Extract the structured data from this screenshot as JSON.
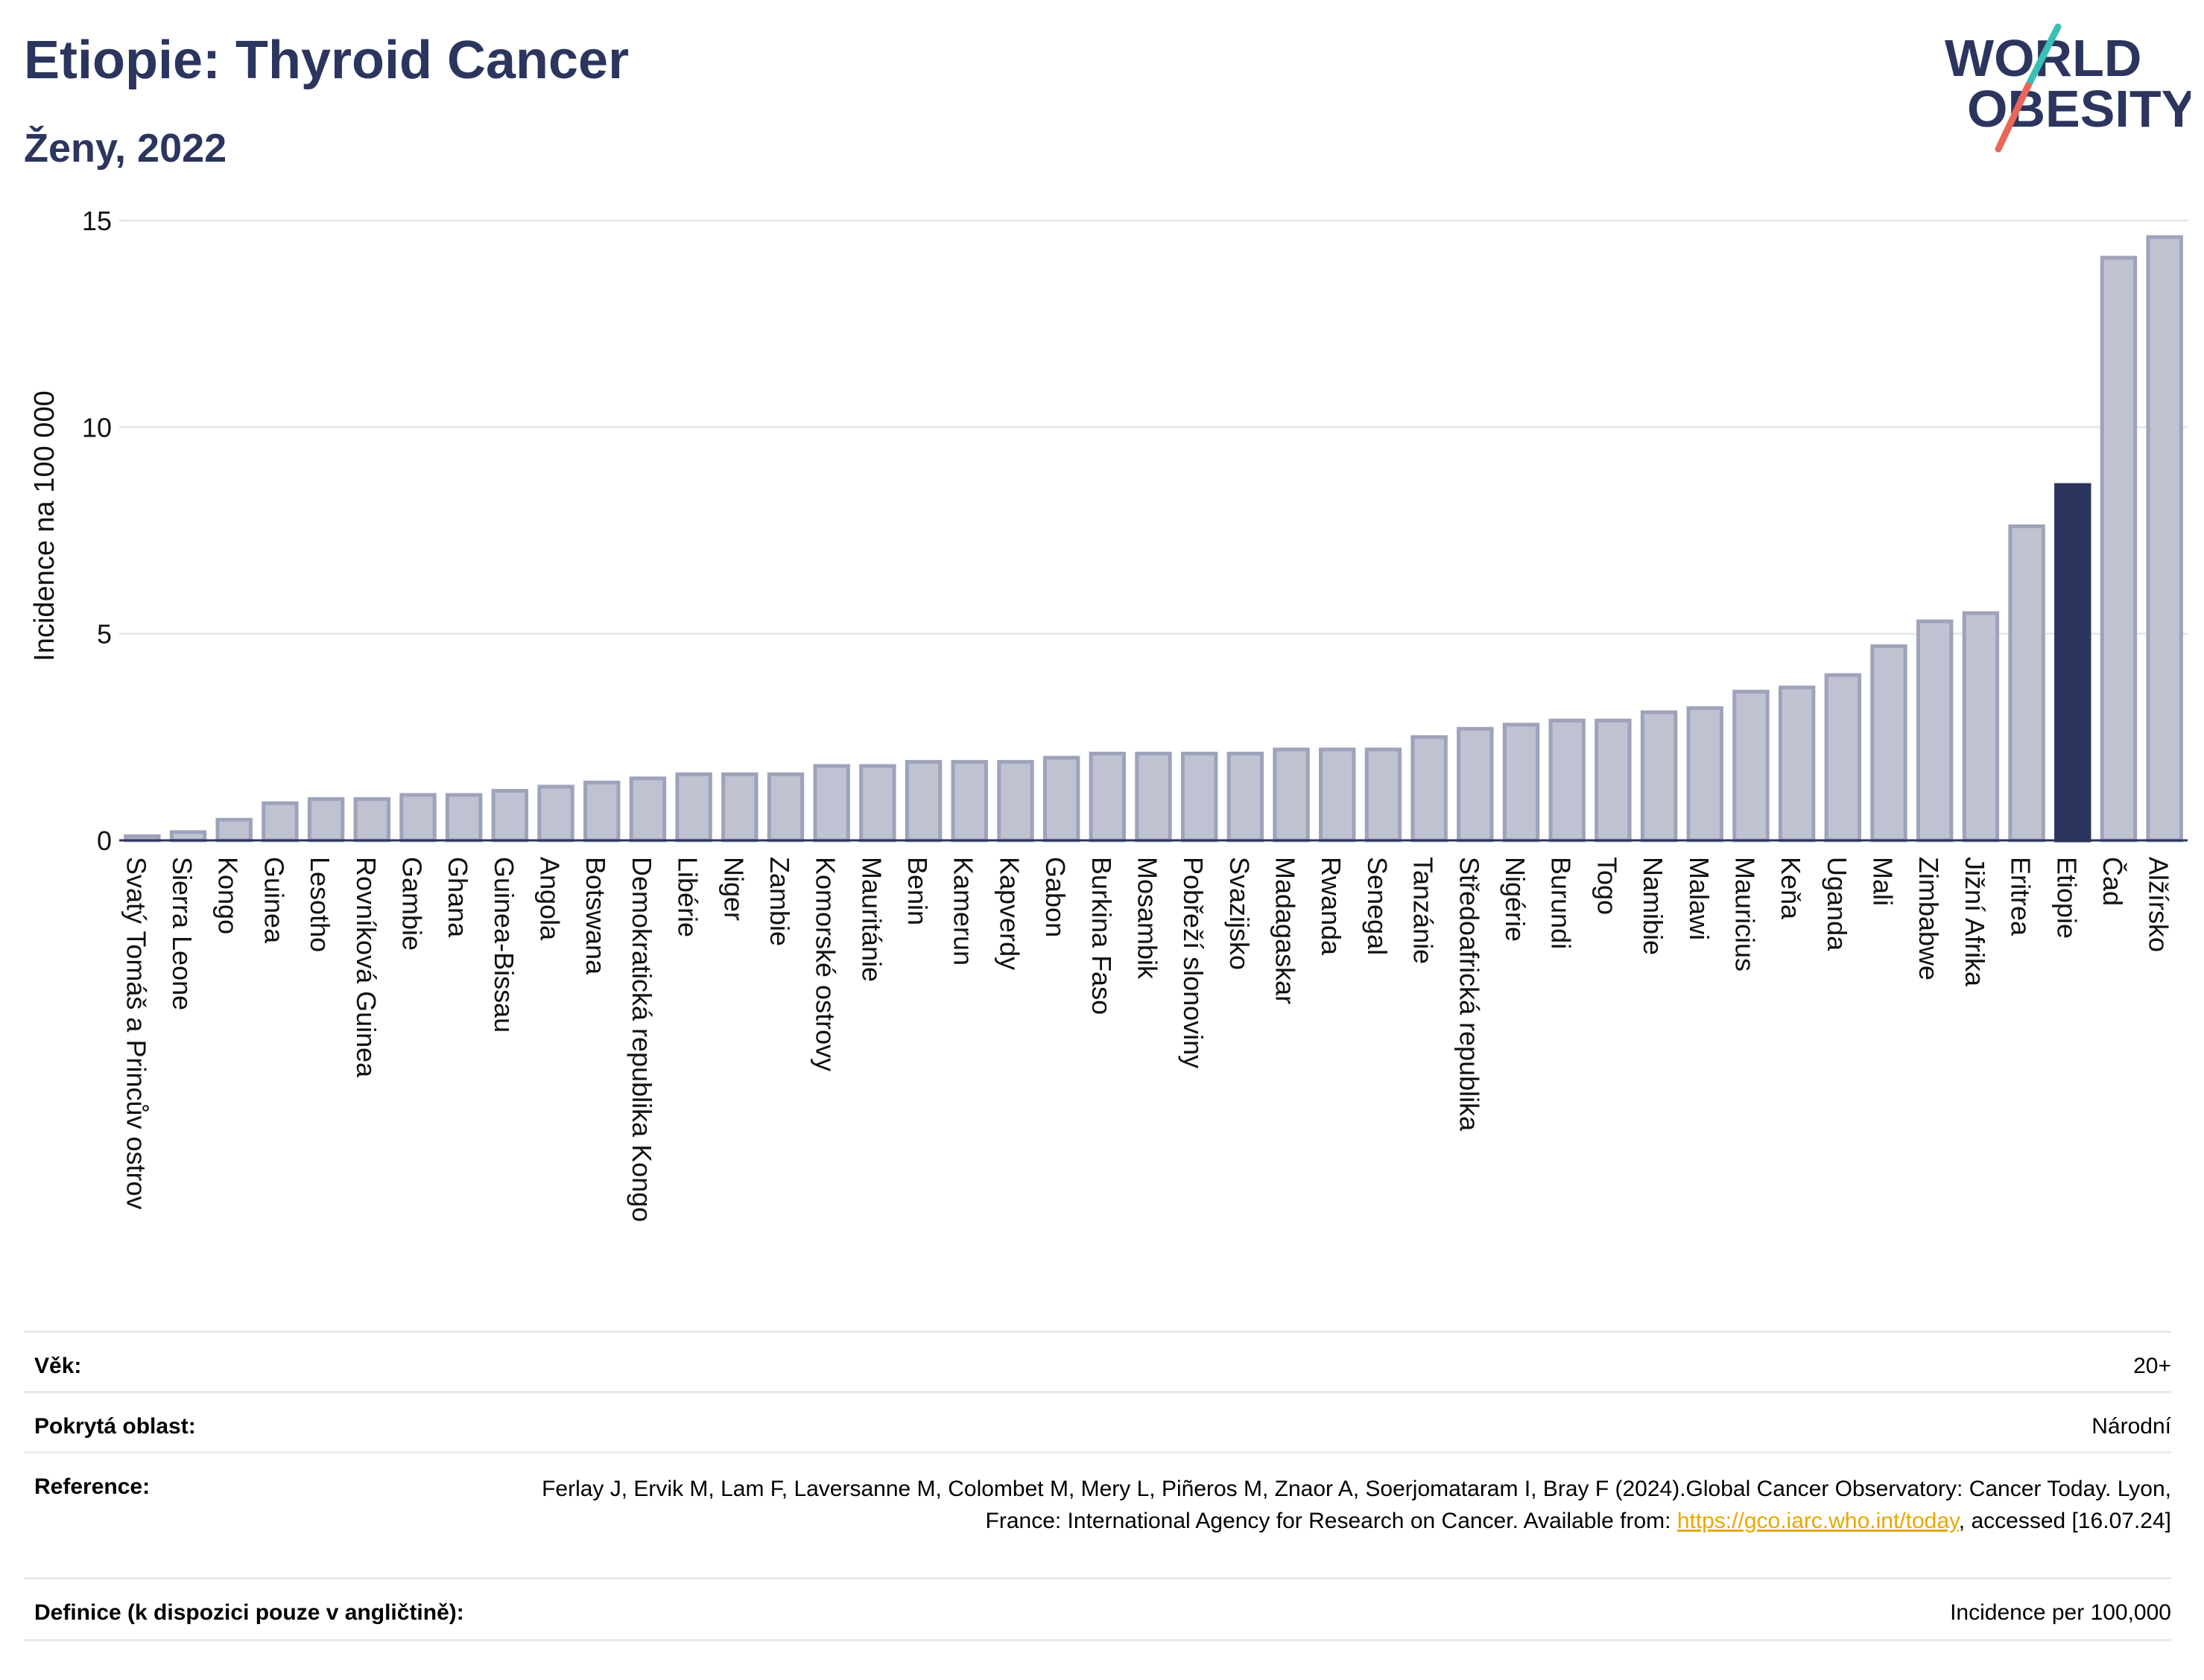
{
  "header": {
    "title": "Etiopie: Thyroid Cancer",
    "subtitle": "Ženy, 2022",
    "logo_line1": "WORLD",
    "logo_line2": "OBESITY"
  },
  "colors": {
    "title": "#2b355e",
    "bar_fill": "#bfc2d1",
    "bar_stroke": "#9ea3bb",
    "highlight": "#2b355e",
    "gridline": "#e6e8ef",
    "axis": "#2b355e",
    "link": "#e6a800",
    "logo_teal": "#3bbfb5",
    "logo_red": "#e8675a"
  },
  "chart_data": {
    "type": "bar",
    "ylabel": "Incidence na 100 000",
    "ylim": [
      0,
      15
    ],
    "yticks": [
      0,
      5,
      10,
      15
    ],
    "grid": true,
    "highlight_category": "Etiopie",
    "categories": [
      "Svatý Tomáš a Princův ostrov",
      "Sierra Leone",
      "Kongo",
      "Guinea",
      "Lesotho",
      "Rovníková Guinea",
      "Gambie",
      "Ghana",
      "Guinea-Bissau",
      "Angola",
      "Botswana",
      "Demokratická republika Kongo",
      "Libérie",
      "Niger",
      "Zambie",
      "Komorské ostrovy",
      "Mauritánie",
      "Benin",
      "Kamerun",
      "Kapverdy",
      "Gabon",
      "Burkina Faso",
      "Mosambik",
      "Pobřeží slonoviny",
      "Svazijsko",
      "Madagaskar",
      "Rwanda",
      "Senegal",
      "Tanzánie",
      "Středoafrická republika",
      "Nigérie",
      "Burundi",
      "Togo",
      "Namibie",
      "Malawi",
      "Mauricius",
      "Keňa",
      "Uganda",
      "Mali",
      "Zimbabwe",
      "Jižní Afrika",
      "Eritrea",
      "Etiopie",
      "Čad",
      "Alžírsko"
    ],
    "values": [
      0.1,
      0.2,
      0.5,
      0.9,
      1.0,
      1.0,
      1.1,
      1.1,
      1.2,
      1.3,
      1.4,
      1.5,
      1.6,
      1.6,
      1.6,
      1.8,
      1.8,
      1.9,
      1.9,
      1.9,
      2.0,
      2.1,
      2.1,
      2.1,
      2.1,
      2.2,
      2.2,
      2.2,
      2.5,
      2.7,
      2.8,
      2.9,
      2.9,
      3.1,
      3.2,
      3.6,
      3.7,
      4.0,
      4.7,
      5.3,
      5.5,
      7.6,
      8.6,
      14.1,
      14.6
    ]
  },
  "info": {
    "age_label": "Věk:",
    "age_value": "20+",
    "area_label": "Pokrytá oblast:",
    "area_value": "Národní",
    "ref_label": "Reference:",
    "ref_text_1": "Ferlay J, Ervik M, Lam F, Laversanne M, Colombet M, Mery L, Piñeros M, Znaor A, Soerjomataram I, Bray F (2024).Global Cancer Observatory: Cancer Today. Lyon, France: International Agency for Research on Cancer. Available from: ",
    "ref_link": "https://gco.iarc.who.int/today",
    "ref_text_2": ", accessed [16.07.24]",
    "def_label": "Definice (k dispozici pouze v angličtině):",
    "def_value": "Incidence per 100,000"
  }
}
